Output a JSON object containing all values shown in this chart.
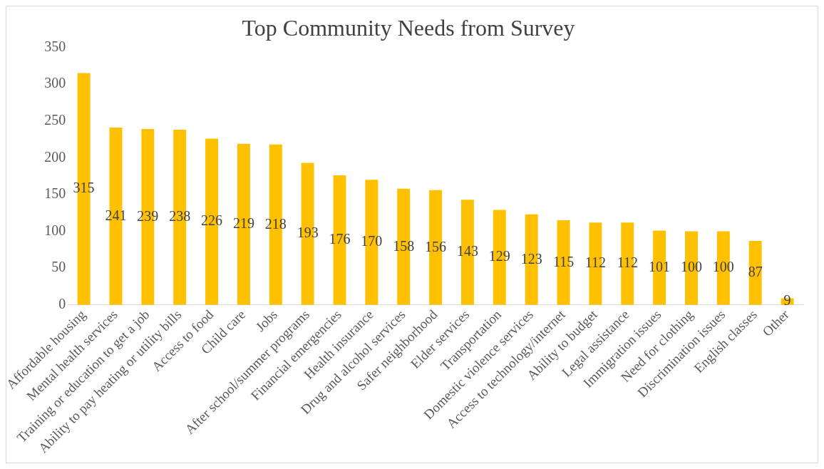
{
  "chart_data": {
    "type": "bar",
    "title": "Top Community Needs from Survey",
    "categories": [
      "Affordable housing",
      "Mental health services",
      "Training or education to get a job",
      "Ability to pay heating or utility bills",
      "Access to food",
      "Child care",
      "Jobs",
      "After school/summer programs",
      "Financial emergencies",
      "Health insurance",
      "Drug and alcohol services",
      "Safer neighborhood",
      "Elder services",
      "Transportation",
      "Domestic violence services",
      "Access to technology/internet",
      "Ability to budget",
      "Legal assistance",
      "Immigration issues",
      "Need for clothing",
      "Discrimination issues",
      "English classes",
      "Other"
    ],
    "values": [
      315,
      241,
      239,
      238,
      226,
      219,
      218,
      193,
      176,
      170,
      158,
      156,
      143,
      129,
      123,
      115,
      112,
      112,
      101,
      100,
      100,
      87,
      9
    ],
    "color": "#ffc000",
    "ylim": [
      0,
      350
    ],
    "yticks": [
      0,
      50,
      100,
      150,
      200,
      250,
      300,
      350
    ],
    "grid": false,
    "data_labels": true,
    "legend": false
  }
}
